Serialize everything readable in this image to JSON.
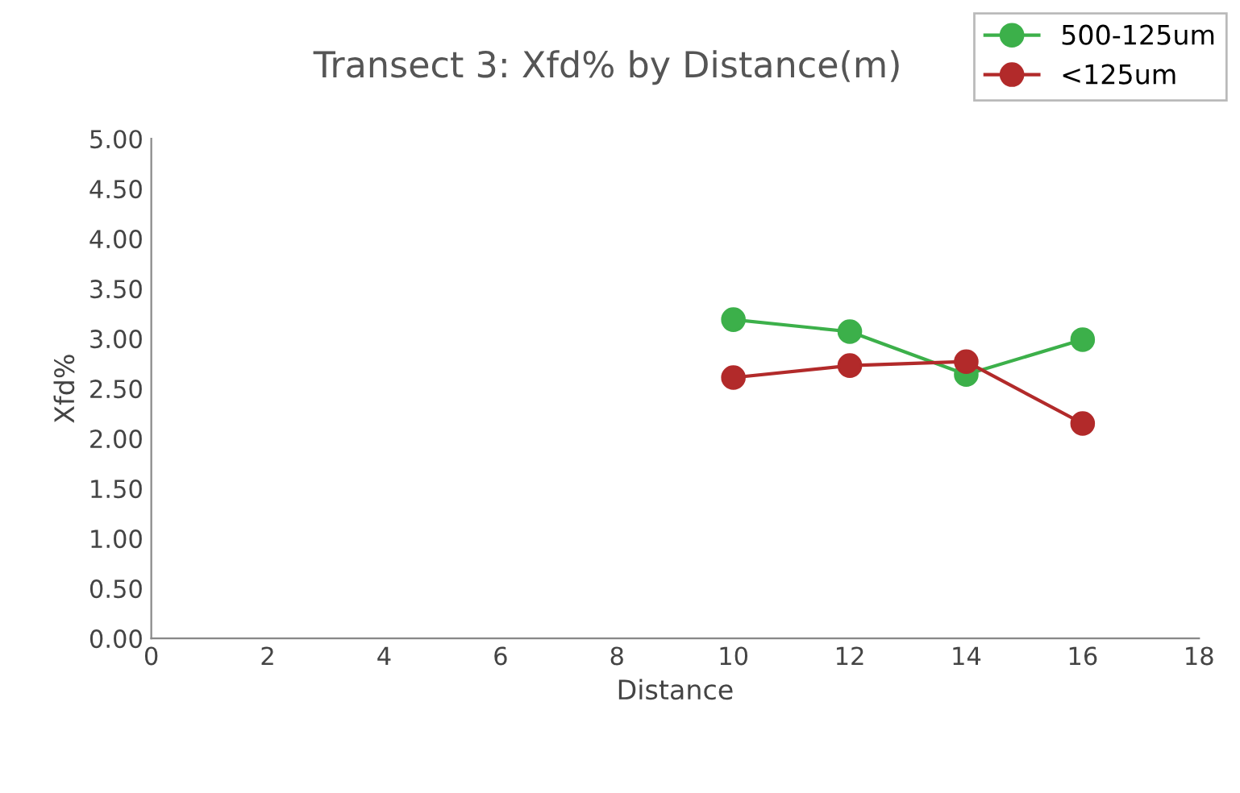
{
  "chart_data": {
    "type": "line",
    "title": "Transect 3: Xfd% by Distance(m)",
    "xlabel": "Distance",
    "ylabel": "Xfd%",
    "x": [
      10,
      12,
      14,
      16
    ],
    "series": [
      {
        "name": "500-125um",
        "color": "#3cb04a",
        "values": [
          3.19,
          3.07,
          2.64,
          2.99
        ]
      },
      {
        "name": "<125um",
        "color": "#b22a2a",
        "values": [
          2.61,
          2.73,
          2.77,
          2.15
        ]
      }
    ],
    "xlim": [
      0,
      18
    ],
    "xticks": [
      0,
      2,
      4,
      6,
      8,
      10,
      12,
      14,
      16,
      18
    ],
    "ylim": [
      0,
      5
    ],
    "yticks": [
      {
        "value": 0,
        "label": "0.00"
      },
      {
        "value": 0.5,
        "label": "0.50"
      },
      {
        "value": 1,
        "label": "1.00"
      },
      {
        "value": 1.5,
        "label": "1.50"
      },
      {
        "value": 2,
        "label": "2.00"
      },
      {
        "value": 2.5,
        "label": "2.50"
      },
      {
        "value": 3,
        "label": "3.00"
      },
      {
        "value": 3.5,
        "label": "3.50"
      },
      {
        "value": 4,
        "label": "4.00"
      },
      {
        "value": 4.5,
        "label": "4.50"
      },
      {
        "value": 5,
        "label": "5.00"
      }
    ],
    "marker": "circle",
    "line_style": "solid",
    "legend": "top right",
    "grid": false
  }
}
